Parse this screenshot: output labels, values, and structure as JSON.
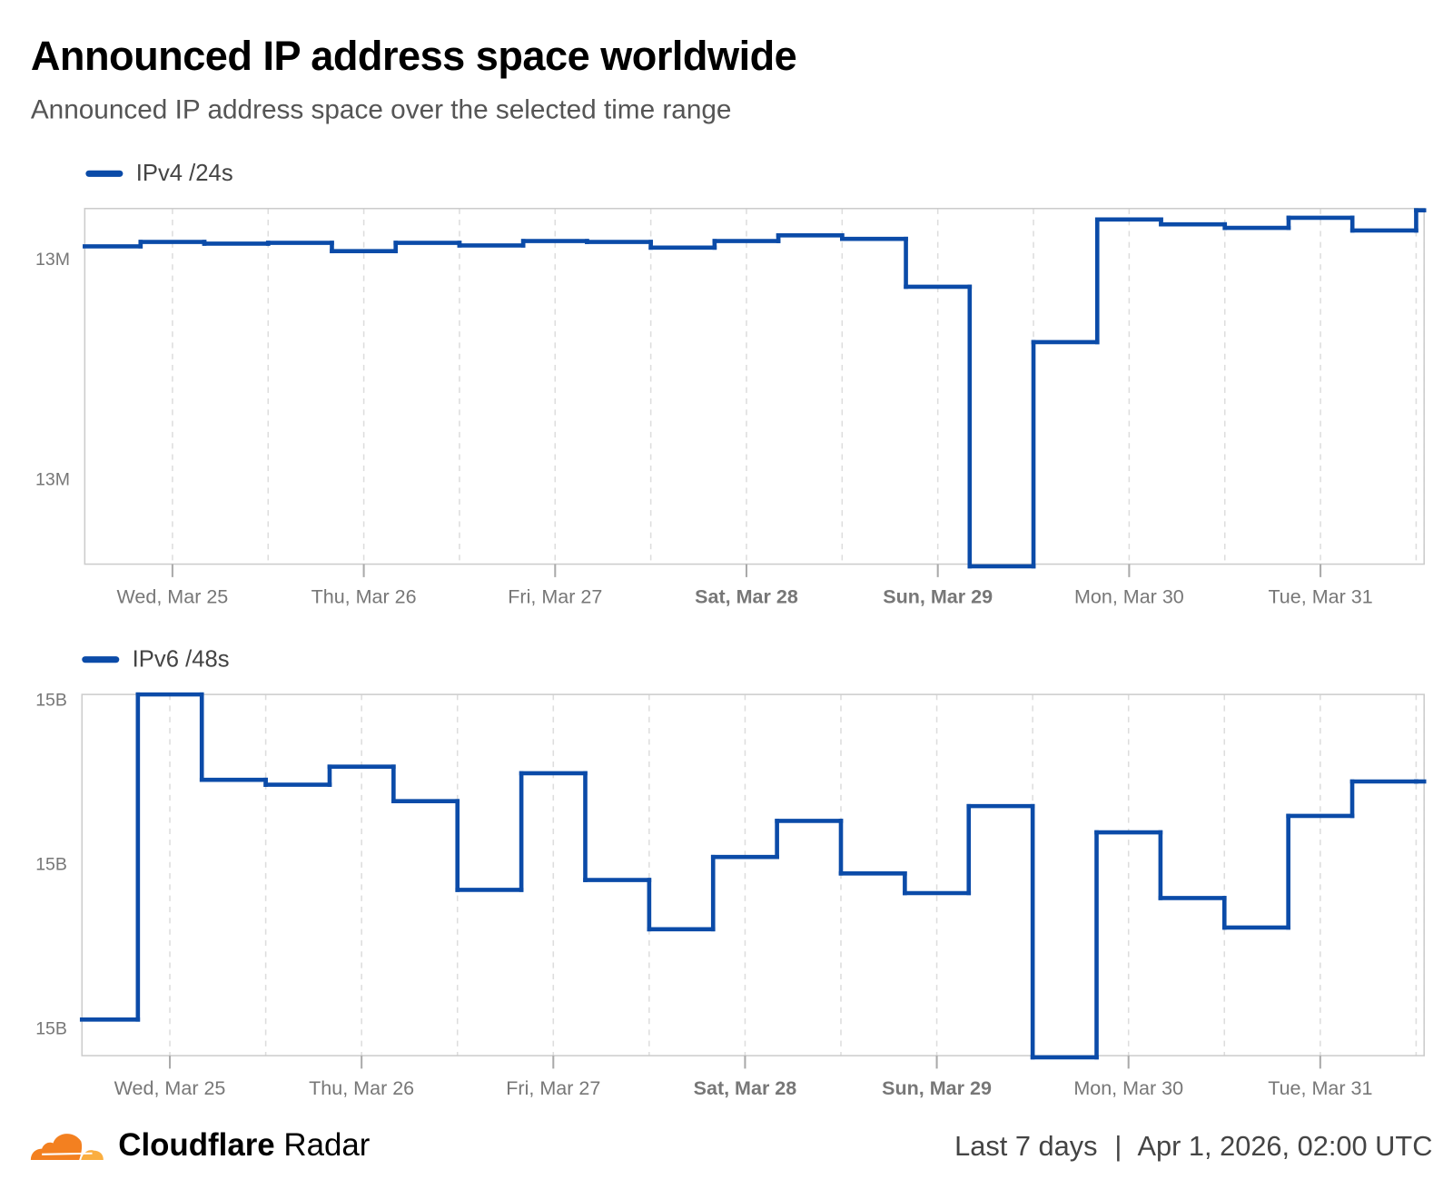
{
  "header": {
    "title": "Announced IP address space worldwide",
    "subtitle": "Announced IP address space over the selected time range"
  },
  "colors": {
    "series": "#0B4BA8",
    "grid": "#dddddd",
    "axis": "#cccccc",
    "tick_text": "#777777",
    "logo_orange": "#F38020",
    "logo_light": "#FAAE40"
  },
  "chart_data": [
    {
      "type": "line",
      "step": true,
      "legend": "IPv4 /24s",
      "legend_placement": "top-left",
      "x_range": [
        "2026-03-24T13:00Z",
        "2026-03-31T13:00Z"
      ],
      "ylim": [
        12.9305,
        13.0114
      ],
      "y_unit": "M",
      "y_ticks": [
        {
          "value": 13.0,
          "label": "13M"
        },
        {
          "value": 12.95,
          "label": "13M"
        }
      ],
      "x_ticks": [
        {
          "t": "2026-03-25T00:00Z",
          "label": "Wed, Mar 25",
          "bold": false
        },
        {
          "t": "2026-03-26T00:00Z",
          "label": "Thu, Mar 26",
          "bold": false
        },
        {
          "t": "2026-03-27T00:00Z",
          "label": "Fri, Mar 27",
          "bold": false
        },
        {
          "t": "2026-03-28T00:00Z",
          "label": "Sat, Mar 28",
          "bold": true
        },
        {
          "t": "2026-03-29T00:00Z",
          "label": "Sun, Mar 29",
          "bold": true
        },
        {
          "t": "2026-03-30T00:00Z",
          "label": "Mon, Mar 30",
          "bold": false
        },
        {
          "t": "2026-03-31T00:00Z",
          "label": "Tue, Mar 31",
          "bold": false
        }
      ],
      "grid": "vertical dashed every 12h",
      "series": [
        {
          "name": "IPv4 /24s",
          "points": [
            [
              "2026-03-24T13:00Z",
              13.0028
            ],
            [
              "2026-03-24T20:00Z",
              13.0038
            ],
            [
              "2026-03-25T04:00Z",
              13.0034
            ],
            [
              "2026-03-25T12:00Z",
              13.0036
            ],
            [
              "2026-03-25T20:00Z",
              13.0017
            ],
            [
              "2026-03-26T04:00Z",
              13.0036
            ],
            [
              "2026-03-26T12:00Z",
              13.003
            ],
            [
              "2026-03-26T20:00Z",
              13.004
            ],
            [
              "2026-03-27T04:00Z",
              13.0038
            ],
            [
              "2026-03-27T12:00Z",
              13.0025
            ],
            [
              "2026-03-27T20:00Z",
              13.004
            ],
            [
              "2026-03-28T04:00Z",
              13.0053
            ],
            [
              "2026-03-28T12:00Z",
              13.0045
            ],
            [
              "2026-03-28T20:00Z",
              12.9936
            ],
            [
              "2026-03-29T04:00Z",
              12.93
            ],
            [
              "2026-03-29T12:00Z",
              12.981
            ],
            [
              "2026-03-29T20:00Z",
              13.0089
            ],
            [
              "2026-03-30T04:00Z",
              13.0078
            ],
            [
              "2026-03-30T12:00Z",
              13.007
            ],
            [
              "2026-03-30T20:00Z",
              13.0093
            ],
            [
              "2026-03-31T04:00Z",
              13.0064
            ],
            [
              "2026-03-31T12:00Z",
              13.011
            ]
          ]
        }
      ]
    },
    {
      "type": "line",
      "step": true,
      "legend": "IPv6 /48s",
      "legend_placement": "top-left",
      "x_range": [
        "2026-03-24T13:00Z",
        "2026-03-31T13:00Z"
      ],
      "ylim": [
        14.9983,
        15.0203
      ],
      "y_unit": "B",
      "y_ticks": [
        {
          "value": 15.02,
          "label": "15B"
        },
        {
          "value": 15.01,
          "label": "15B"
        },
        {
          "value": 15.0,
          "label": "15B"
        }
      ],
      "x_ticks": [
        {
          "t": "2026-03-25T00:00Z",
          "label": "Wed, Mar 25",
          "bold": false
        },
        {
          "t": "2026-03-26T00:00Z",
          "label": "Thu, Mar 26",
          "bold": false
        },
        {
          "t": "2026-03-27T00:00Z",
          "label": "Fri, Mar 27",
          "bold": false
        },
        {
          "t": "2026-03-28T00:00Z",
          "label": "Sat, Mar 28",
          "bold": true
        },
        {
          "t": "2026-03-29T00:00Z",
          "label": "Sun, Mar 29",
          "bold": true
        },
        {
          "t": "2026-03-30T00:00Z",
          "label": "Mon, Mar 30",
          "bold": false
        },
        {
          "t": "2026-03-31T00:00Z",
          "label": "Tue, Mar 31",
          "bold": false
        }
      ],
      "grid": "vertical dashed every 12h",
      "series": [
        {
          "name": "IPv6 /48s",
          "points": [
            [
              "2026-03-24T13:00Z",
              15.0005
            ],
            [
              "2026-03-24T20:00Z",
              15.0203
            ],
            [
              "2026-03-25T04:00Z",
              15.0151
            ],
            [
              "2026-03-25T12:00Z",
              15.0148
            ],
            [
              "2026-03-25T20:00Z",
              15.0159
            ],
            [
              "2026-03-26T04:00Z",
              15.0138
            ],
            [
              "2026-03-26T12:00Z",
              15.0084
            ],
            [
              "2026-03-26T20:00Z",
              15.0155
            ],
            [
              "2026-03-27T04:00Z",
              15.009
            ],
            [
              "2026-03-27T12:00Z",
              15.006
            ],
            [
              "2026-03-27T20:00Z",
              15.0104
            ],
            [
              "2026-03-28T04:00Z",
              15.0126
            ],
            [
              "2026-03-28T12:00Z",
              15.0094
            ],
            [
              "2026-03-28T20:00Z",
              15.0082
            ],
            [
              "2026-03-29T04:00Z",
              15.0135
            ],
            [
              "2026-03-29T12:00Z",
              14.9982
            ],
            [
              "2026-03-29T20:00Z",
              15.0119
            ],
            [
              "2026-03-30T04:00Z",
              15.0079
            ],
            [
              "2026-03-30T12:00Z",
              15.0061
            ],
            [
              "2026-03-30T20:00Z",
              15.0129
            ],
            [
              "2026-03-31T04:00Z",
              15.015
            ],
            [
              "2026-03-31T12:00Z",
              15.015
            ]
          ]
        }
      ]
    }
  ],
  "footer": {
    "brand_bold": "Cloudflare",
    "brand_light": "Radar",
    "range": "Last 7 days",
    "separator": "|",
    "timestamp": "Apr 1, 2026, 02:00 UTC",
    "logo_icon": "cloudflare-cloud-icon"
  }
}
